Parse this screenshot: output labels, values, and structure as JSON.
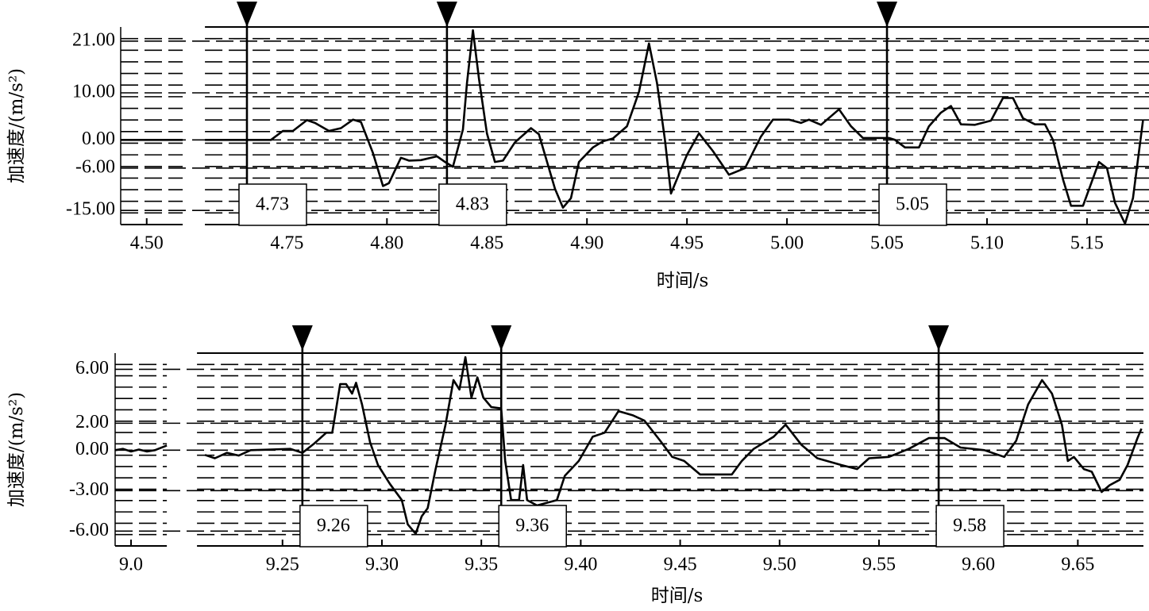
{
  "chart_data": [
    {
      "type": "line",
      "ylabel": "加速度/(m/s²)",
      "xlabel": "时间/s",
      "xlim": [
        4.487,
        5.181
      ],
      "xbreak": [
        4.518,
        4.709
      ],
      "ylim": [
        -18,
        24
      ],
      "yticks": [
        {
          "value": 21,
          "label": "21.00"
        },
        {
          "value": 10,
          "label": "10.00"
        },
        {
          "value": 0,
          "label": "0.00"
        },
        {
          "value": -6,
          "label": "-6.00"
        },
        {
          "value": -15,
          "label": "-15.00"
        }
      ],
      "xticks": [
        {
          "value": 4.5,
          "label": "4.50"
        },
        4.75,
        {
          "value": 4.8,
          "label": "4.80"
        },
        4.85,
        {
          "value": 4.9,
          "label": "4.90"
        },
        4.95,
        {
          "value": 5,
          "label": "5.00"
        },
        5.05,
        {
          "value": 5.1,
          "label": "5.10"
        },
        5.15
      ],
      "markers": [
        4.73,
        4.83,
        5.05
      ],
      "grid": true,
      "series": [
        {
          "color": "#000000",
          "x": [
            4.487,
            4.518,
            4.6,
            4.709,
            4.742,
            4.748,
            4.753,
            4.76,
            4.764,
            4.771,
            4.777,
            4.783,
            4.787,
            4.793,
            4.798,
            4.801,
            4.807,
            4.811,
            4.817,
            4.825,
            4.829,
            4.833,
            4.838,
            4.84,
            4.843,
            4.846,
            4.85,
            4.854,
            4.858,
            4.864,
            4.872,
            4.876,
            4.884,
            4.888,
            4.892,
            4.896,
            4.903,
            4.908,
            4.913,
            4.92,
            4.926,
            4.931,
            4.935,
            4.939,
            4.942,
            4.95,
            4.956,
            4.963,
            4.971,
            4.979,
            4.987,
            4.993,
            5.001,
            5.007,
            5.011,
            5.017,
            5.026,
            5.032,
            5.038,
            5.051,
            5.054,
            5.059,
            5.066,
            5.071,
            5.077,
            5.082,
            5.087,
            5.094,
            5.102,
            5.108,
            5.113,
            5.118,
            5.124,
            5.129,
            5.133,
            5.138,
            5.142,
            5.148,
            5.156,
            5.16,
            5.164,
            5.169,
            5.173,
            5.178
          ],
          "values": [
            0,
            0,
            null,
            0,
            0,
            1.9,
            1.9,
            4.2,
            3.6,
            1.9,
            2.5,
            4.3,
            3.8,
            -2.8,
            -9.8,
            -9.2,
            -3.8,
            -4.4,
            -4.3,
            -3.5,
            -4.7,
            -5.7,
            2.2,
            12.1,
            23.3,
            13.0,
            1.4,
            -4.7,
            -4.4,
            -0.5,
            2.5,
            1.2,
            -10.4,
            -14.4,
            -12.4,
            -4.7,
            -1.6,
            -0.3,
            0.3,
            2.9,
            10.2,
            20.5,
            12.1,
            0,
            -11.4,
            -3.2,
            1.4,
            -2.4,
            -7.4,
            -6,
            0.7,
            4.3,
            4.3,
            3.6,
            4.3,
            3.2,
            6.5,
            2.9,
            0.4,
            0.4,
            0,
            -1.6,
            -1.6,
            2.9,
            5.8,
            7.2,
            3.3,
            3.2,
            4.1,
            8.9,
            8.9,
            4.6,
            3.3,
            3.3,
            0,
            -8.4,
            -14,
            -14,
            -4.7,
            -6,
            -13.4,
            -17.8,
            -12.4,
            4.1
          ]
        }
      ]
    },
    {
      "type": "line",
      "ylabel": "加速度/(m/s²)",
      "xlabel": "时间/s",
      "xlim": [
        8.992,
        9.683
      ],
      "xbreak": [
        9.018,
        9.207
      ],
      "ylim": [
        -7.1,
        7.2
      ],
      "yticks": [
        {
          "value": 6,
          "label": "6.00"
        },
        {
          "value": 2,
          "label": "2.00"
        },
        {
          "value": 0,
          "label": "0.00"
        },
        {
          "value": -3,
          "label": "-3.00"
        },
        {
          "value": -6,
          "label": "-6.00"
        }
      ],
      "xticks": [
        {
          "value": 9,
          "label": "9.0"
        },
        9.25,
        {
          "value": 9.3,
          "label": "9.30"
        },
        9.35,
        {
          "value": 9.4,
          "label": "9.40"
        },
        9.45,
        {
          "value": 9.5,
          "label": "9.50"
        },
        9.55,
        {
          "value": 9.6,
          "label": "9.60"
        },
        9.65
      ],
      "markers": [
        9.26,
        9.36,
        9.58
      ],
      "grid": true,
      "series": [
        {
          "color": "#000000",
          "x": [
            8.992,
            8.996,
            9.0,
            9.004,
            9.008,
            9.012,
            9.018,
            9.1,
            9.211,
            9.216,
            9.222,
            9.228,
            9.234,
            9.244,
            9.254,
            9.26,
            9.266,
            9.272,
            9.275,
            9.279,
            9.282,
            9.285,
            9.287,
            9.29,
            9.294,
            9.298,
            9.304,
            9.31,
            9.313,
            9.317,
            9.32,
            9.323,
            9.327,
            9.332,
            9.336,
            9.339,
            9.342,
            9.345,
            9.348,
            9.351,
            9.355,
            9.36,
            9.362,
            9.365,
            9.369,
            9.371,
            9.373,
            9.378,
            9.388,
            9.392,
            9.399,
            9.406,
            9.412,
            9.419,
            9.426,
            9.432,
            9.44,
            9.446,
            9.452,
            9.46,
            9.468,
            9.476,
            9.481,
            9.487,
            9.497,
            9.503,
            9.511,
            9.519,
            9.531,
            9.539,
            9.545,
            9.555,
            9.565,
            9.575,
            9.583,
            9.591,
            9.603,
            9.613,
            9.619,
            9.625,
            9.632,
            9.637,
            9.642,
            9.645,
            9.648,
            9.653,
            9.657,
            9.662,
            9.666,
            9.671,
            9.675,
            9.68,
            9.682
          ],
          "values": [
            0,
            0.1,
            -0.1,
            0.05,
            -0.1,
            0,
            0.35,
            null,
            -0.35,
            -0.6,
            -0.2,
            -0.4,
            0,
            0.05,
            0.1,
            -0.2,
            0.5,
            1.3,
            1.3,
            4.9,
            4.9,
            4.2,
            5.0,
            3.4,
            0.6,
            -1.1,
            -2.5,
            -3.7,
            -5.5,
            -6.2,
            -4.9,
            -4.3,
            -1.4,
            1.9,
            5.2,
            4.5,
            6.9,
            3.9,
            5.4,
            3.9,
            3.2,
            3.1,
            -0.8,
            -3.7,
            -3.7,
            -1.1,
            -3.7,
            -4.1,
            -3.7,
            -1.9,
            -0.8,
            1.0,
            1.3,
            2.9,
            2.6,
            2.2,
            0.7,
            -0.5,
            -0.8,
            -1.8,
            -1.8,
            -1.8,
            -0.8,
            0.1,
            1.0,
            1.9,
            0.4,
            -0.6,
            -1.1,
            -1.4,
            -0.6,
            -0.5,
            0.1,
            0.9,
            0.9,
            0.2,
            0,
            -0.5,
            0.7,
            3.4,
            5.2,
            4.2,
            1.9,
            -0.8,
            -0.5,
            -1.4,
            -1.6,
            -3.1,
            -2.6,
            -2.2,
            -1.1,
            0.9,
            1.6
          ]
        }
      ]
    }
  ]
}
